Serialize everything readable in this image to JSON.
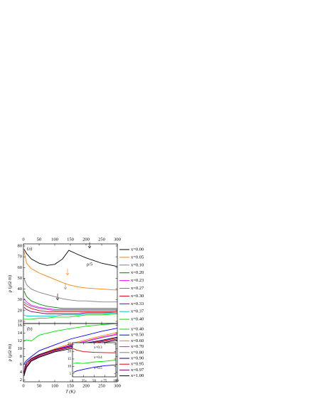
{
  "chart_data": [
    {
      "type": "line",
      "ylabel": "ρ (μΩ m)",
      "annotations": [
        "(a)",
        "ρ/5"
      ],
      "x": [
        2,
        10,
        25,
        50,
        75,
        100,
        125,
        145,
        175,
        200,
        250,
        300
      ],
      "xlim": [
        0,
        300
      ],
      "xticks": [
        0,
        50,
        100,
        150,
        200,
        250,
        300
      ],
      "ylim": [
        8,
        82
      ],
      "yticks": [
        10,
        20,
        30,
        40,
        50,
        60,
        70,
        80
      ],
      "series": [
        {
          "name": "x=0.00",
          "color": "#000000",
          "values": [
            77,
            73,
            68,
            64,
            62,
            63,
            68,
            76,
            72,
            69,
            64,
            61
          ]
        },
        {
          "name": "x=0.05",
          "color": "#ff8000",
          "values": [
            75,
            64,
            59,
            55,
            52,
            49,
            46,
            44,
            42,
            41,
            40,
            39
          ]
        },
        {
          "name": "x=0.10",
          "color": "#808080",
          "values": [
            50,
            44,
            40,
            37,
            35,
            33,
            31,
            30,
            29,
            29,
            28,
            28
          ]
        },
        {
          "name": "x=0.20",
          "color": "#008000",
          "values": [
            38,
            33,
            29,
            26,
            24,
            23,
            22,
            22,
            22,
            22,
            22,
            22
          ]
        },
        {
          "name": "x=0.23",
          "color": "#ff00ff",
          "values": [
            31,
            28,
            25,
            23,
            22,
            21,
            21,
            21,
            21,
            21,
            21,
            21
          ]
        },
        {
          "name": "x=0.27",
          "color": "#6a7a90",
          "values": [
            28,
            26,
            24,
            22,
            21,
            20,
            20,
            20,
            20,
            20,
            20,
            20
          ]
        },
        {
          "name": "x=0.30",
          "color": "#e00000",
          "values": [
            26,
            24,
            22,
            20,
            19,
            19,
            19,
            19,
            19,
            19,
            19,
            19
          ]
        },
        {
          "name": "x=0.33",
          "color": "#800080",
          "values": [
            23,
            21,
            19,
            18,
            17,
            17,
            17,
            17,
            17,
            18,
            18,
            18
          ]
        },
        {
          "name": "x=0.37",
          "color": "#00c8c8",
          "values": [
            16,
            15,
            15,
            15,
            15,
            15,
            16,
            16,
            16,
            17,
            17,
            18
          ]
        },
        {
          "name": "x=0.40",
          "color": "#00e000",
          "values": [
            12,
            12,
            12,
            13,
            13,
            14,
            14,
            14,
            15,
            16,
            16,
            17
          ]
        }
      ]
    },
    {
      "type": "line",
      "ylabel": "ρ (μΩ m)",
      "xlabel": "T (K)",
      "annotations": [
        "(b)"
      ],
      "x": [
        2,
        5,
        10,
        25,
        50,
        100,
        150,
        200,
        250,
        300
      ],
      "xlim": [
        0,
        300
      ],
      "xticks": [
        0,
        50,
        100,
        150,
        200,
        250,
        300
      ],
      "ylim": [
        1.5,
        16.5
      ],
      "yticks": [
        2,
        4,
        6,
        8,
        10,
        12,
        14,
        16
      ],
      "series": [
        {
          "name": "x=0.40",
          "color": "#00e000",
          "values": [
            12,
            12.2,
            12.3,
            12,
            13.5,
            14.5,
            15.2,
            15.8,
            16.2,
            16.5
          ]
        },
        {
          "name": "x=0.50",
          "color": "#0000ff",
          "values": [
            6,
            6.5,
            7,
            8,
            9.5,
            11,
            12.5,
            13.5,
            14.5,
            15.3
          ]
        },
        {
          "name": "x=0.60",
          "color": "#ff8000",
          "values": [
            4,
            5,
            6,
            7.5,
            8.5,
            10,
            11.3,
            12.3,
            13.3,
            14.2
          ]
        },
        {
          "name": "x=0.70",
          "color": "#ff00ff",
          "values": [
            3.5,
            4.5,
            5.5,
            7,
            8.3,
            9.8,
            11,
            12,
            13,
            13.8
          ]
        },
        {
          "name": "x=0.80",
          "color": "#808080",
          "values": [
            3.5,
            4.5,
            5.5,
            7,
            8.2,
            9.7,
            10.8,
            11.8,
            12.8,
            13.6
          ]
        },
        {
          "name": "x=0.90",
          "color": "#000080",
          "values": [
            4,
            5.5,
            6.5,
            7.5,
            8.5,
            9.8,
            10.7,
            11.5,
            12.2,
            13
          ]
        },
        {
          "name": "x=0.95",
          "color": "#e00000",
          "values": [
            3.8,
            5,
            6,
            7.3,
            8.3,
            9.6,
            10.5,
            11.3,
            12,
            12.8
          ]
        },
        {
          "name": "x=0.97",
          "color": "#800080",
          "values": [
            3.5,
            4.5,
            5.5,
            7,
            8,
            9.4,
            10.3,
            11,
            11.8,
            12.5
          ]
        },
        {
          "name": "x=1.00",
          "color": "#000000",
          "values": [
            3,
            4,
            5.2,
            6.8,
            7.8,
            9.2,
            10,
            10.8,
            11.5,
            12.2
          ]
        }
      ]
    },
    {
      "type": "line",
      "x": [
        2,
        10,
        25,
        50,
        75,
        100
      ],
      "xlim": [
        0,
        100
      ],
      "xticks": [
        0,
        25,
        50,
        75,
        100
      ],
      "ylim": [
        3,
        26
      ],
      "yticks": [
        5,
        10,
        15,
        20,
        25
      ],
      "series": [
        {
          "name": "x=0.3",
          "color": "#e00000",
          "values": [
            22,
            21,
            20,
            19.5,
            19.3,
            19.2
          ]
        },
        {
          "name": "x=0.4",
          "color": "#00e000",
          "values": [
            12,
            12.3,
            12,
            13,
            13.5,
            14.3
          ]
        },
        {
          "name": "x=0.5",
          "color": "#0000ff",
          "values": [
            6,
            7,
            8,
            9.5,
            10.5,
            11
          ]
        }
      ]
    }
  ]
}
